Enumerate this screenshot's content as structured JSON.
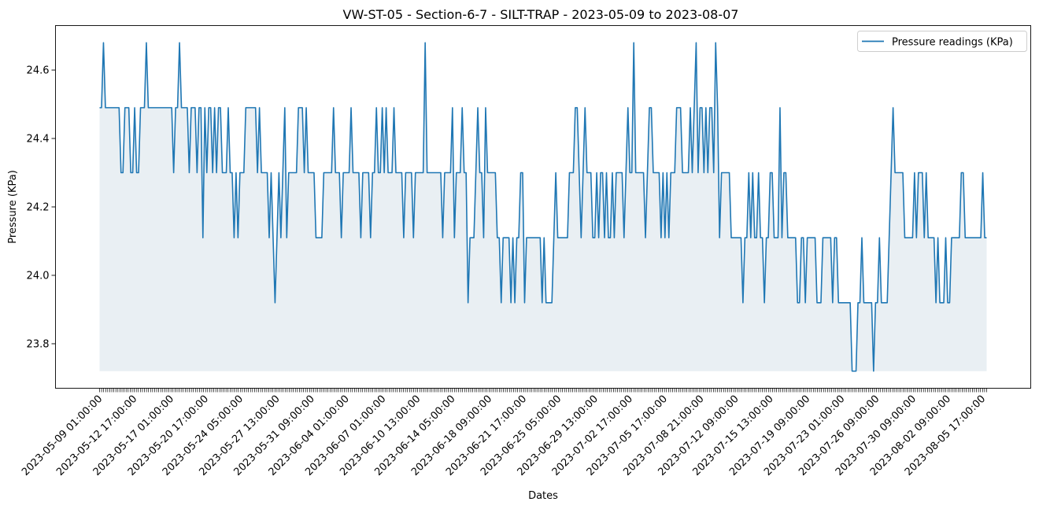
{
  "chart_data": {
    "type": "area",
    "title": "VW-ST-05 - Section-6-7 - SILT-TRAP - 2023-05-09 to 2023-08-07",
    "xlabel": "Dates",
    "ylabel": "Pressure (KPa)",
    "legend": {
      "placement": "top-right",
      "label": "Pressure readings (KPa)"
    },
    "grid": false,
    "ylim": [
      23.67,
      24.73
    ],
    "yticks": [
      23.8,
      24.0,
      24.2,
      24.4,
      24.6
    ],
    "ytick_labels": [
      "23.8",
      "24.0",
      "24.2",
      "24.4",
      "24.6"
    ],
    "x_count": 436,
    "xtick_labels": [
      "2023-05-09 01:00:00",
      "2023-05-12 17:00:00",
      "2023-05-17 01:00:00",
      "2023-05-20 17:00:00",
      "2023-05-24 05:00:00",
      "2023-05-27 13:00:00",
      "2023-05-31 09:00:00",
      "2023-06-04 01:00:00",
      "2023-06-07 01:00:00",
      "2023-06-10 13:00:00",
      "2023-06-14 05:00:00",
      "2023-06-18 09:00:00",
      "2023-06-21 17:00:00",
      "2023-06-25 05:00:00",
      "2023-06-29 13:00:00",
      "2023-07-02 17:00:00",
      "2023-07-05 17:00:00",
      "2023-07-08 21:00:00",
      "2023-07-12 09:00:00",
      "2023-07-15 13:00:00",
      "2023-07-19 09:00:00",
      "2023-07-23 01:00:00",
      "2023-07-26 09:00:00",
      "2023-07-30 09:00:00",
      "2023-08-02 09:00:00",
      "2023-08-05 17:00:00"
    ],
    "fill_baseline": 23.72,
    "series": [
      {
        "name": "Pressure readings (KPa)",
        "color": "#1f77b4",
        "fill_color": "#e9eff3",
        "values": [
          24.49,
          24.49,
          24.68,
          24.49,
          24.49,
          24.49,
          24.49,
          24.49,
          24.49,
          24.49,
          24.49,
          24.3,
          24.3,
          24.49,
          24.49,
          24.49,
          24.3,
          24.3,
          24.49,
          24.3,
          24.3,
          24.49,
          24.49,
          24.49,
          24.68,
          24.49,
          24.49,
          24.49,
          24.49,
          24.49,
          24.49,
          24.49,
          24.49,
          24.49,
          24.49,
          24.49,
          24.49,
          24.49,
          24.3,
          24.49,
          24.49,
          24.68,
          24.49,
          24.49,
          24.49,
          24.49,
          24.3,
          24.49,
          24.49,
          24.49,
          24.3,
          24.49,
          24.49,
          24.11,
          24.49,
          24.3,
          24.49,
          24.49,
          24.3,
          24.49,
          24.3,
          24.49,
          24.49,
          24.3,
          24.3,
          24.3,
          24.49,
          24.3,
          24.3,
          24.11,
          24.3,
          24.11,
          24.3,
          24.3,
          24.3,
          24.49,
          24.49,
          24.49,
          24.49,
          24.49,
          24.49,
          24.3,
          24.49,
          24.3,
          24.3,
          24.3,
          24.3,
          24.11,
          24.3,
          24.11,
          23.92,
          24.11,
          24.3,
          24.11,
          24.3,
          24.49,
          24.11,
          24.3,
          24.3,
          24.3,
          24.3,
          24.3,
          24.49,
          24.49,
          24.49,
          24.3,
          24.49,
          24.3,
          24.3,
          24.3,
          24.3,
          24.11,
          24.11,
          24.11,
          24.11,
          24.3,
          24.3,
          24.3,
          24.3,
          24.3,
          24.49,
          24.3,
          24.3,
          24.3,
          24.11,
          24.3,
          24.3,
          24.3,
          24.3,
          24.49,
          24.3,
          24.3,
          24.3,
          24.3,
          24.11,
          24.3,
          24.3,
          24.3,
          24.3,
          24.11,
          24.3,
          24.3,
          24.49,
          24.3,
          24.3,
          24.49,
          24.3,
          24.49,
          24.3,
          24.3,
          24.3,
          24.49,
          24.3,
          24.3,
          24.3,
          24.3,
          24.11,
          24.3,
          24.3,
          24.3,
          24.3,
          24.11,
          24.3,
          24.3,
          24.3,
          24.3,
          24.3,
          24.68,
          24.3,
          24.3,
          24.3,
          24.3,
          24.3,
          24.3,
          24.3,
          24.3,
          24.11,
          24.3,
          24.3,
          24.3,
          24.3,
          24.49,
          24.11,
          24.3,
          24.3,
          24.3,
          24.49,
          24.3,
          24.3,
          23.92,
          24.11,
          24.11,
          24.11,
          24.3,
          24.49,
          24.3,
          24.3,
          24.11,
          24.49,
          24.3,
          24.3,
          24.3,
          24.3,
          24.3,
          24.11,
          24.11,
          23.92,
          24.11,
          24.11,
          24.11,
          24.11,
          23.92,
          24.11,
          23.92,
          24.11,
          24.11,
          24.3,
          24.3,
          23.92,
          24.11,
          24.11,
          24.11,
          24.11,
          24.11,
          24.11,
          24.11,
          24.11,
          23.92,
          24.11,
          23.92,
          23.92,
          23.92,
          23.92,
          24.11,
          24.3,
          24.11,
          24.11,
          24.11,
          24.11,
          24.11,
          24.11,
          24.3,
          24.3,
          24.3,
          24.49,
          24.49,
          24.3,
          24.11,
          24.3,
          24.49,
          24.3,
          24.3,
          24.3,
          24.11,
          24.11,
          24.3,
          24.11,
          24.3,
          24.3,
          24.11,
          24.3,
          24.11,
          24.11,
          24.3,
          24.11,
          24.3,
          24.3,
          24.3,
          24.3,
          24.11,
          24.3,
          24.49,
          24.3,
          24.3,
          24.68,
          24.3,
          24.3,
          24.3,
          24.3,
          24.3,
          24.11,
          24.3,
          24.49,
          24.49,
          24.3,
          24.3,
          24.3,
          24.3,
          24.11,
          24.3,
          24.11,
          24.3,
          24.11,
          24.3,
          24.3,
          24.3,
          24.49,
          24.49,
          24.49,
          24.3,
          24.3,
          24.3,
          24.3,
          24.49,
          24.3,
          24.49,
          24.68,
          24.3,
          24.49,
          24.49,
          24.3,
          24.49,
          24.3,
          24.49,
          24.49,
          24.3,
          24.68,
          24.49,
          24.11,
          24.3,
          24.3,
          24.3,
          24.3,
          24.3,
          24.11,
          24.11,
          24.11,
          24.11,
          24.11,
          24.11,
          23.92,
          24.11,
          24.11,
          24.3,
          24.11,
          24.3,
          24.11,
          24.11,
          24.3,
          24.11,
          24.11,
          23.92,
          24.11,
          24.11,
          24.3,
          24.3,
          24.11,
          24.11,
          24.11,
          24.49,
          24.11,
          24.3,
          24.3,
          24.11,
          24.11,
          24.11,
          24.11,
          24.11,
          23.92,
          23.92,
          24.11,
          24.11,
          23.92,
          24.11,
          24.11,
          24.11,
          24.11,
          24.11,
          23.92,
          23.92,
          23.92,
          24.11,
          24.11,
          24.11,
          24.11,
          24.11,
          23.92,
          24.11,
          24.11,
          23.92,
          23.92,
          23.92,
          23.92,
          23.92,
          23.92,
          23.92,
          23.72,
          23.72,
          23.72,
          23.92,
          23.92,
          24.11,
          23.92,
          23.92,
          23.92,
          23.92,
          23.92,
          23.72,
          23.92,
          23.92,
          24.11,
          23.92,
          23.92,
          23.92,
          23.92,
          24.11,
          24.3,
          24.49,
          24.3,
          24.3,
          24.3,
          24.3,
          24.3,
          24.11,
          24.11,
          24.11,
          24.11,
          24.11,
          24.3,
          24.11,
          24.3,
          24.3,
          24.3,
          24.11,
          24.3,
          24.11,
          24.11,
          24.11,
          24.11,
          23.92,
          24.11,
          23.92,
          23.92,
          23.92,
          24.11,
          23.92,
          23.92,
          24.11,
          24.11,
          24.11,
          24.11,
          24.11,
          24.3,
          24.3,
          24.11,
          24.11,
          24.11,
          24.11,
          24.11,
          24.11,
          24.11,
          24.11,
          24.11,
          24.3,
          24.11,
          24.11
        ]
      }
    ]
  }
}
